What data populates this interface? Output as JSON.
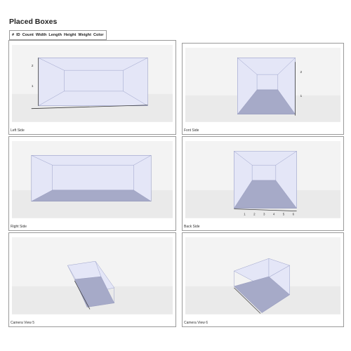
{
  "page": {
    "title": "Placed Boxes"
  },
  "table": {
    "columns": [
      "#",
      "ID",
      "Count",
      "Width",
      "Length",
      "Height",
      "Weight",
      "Color"
    ]
  },
  "views": [
    {
      "caption": "Left Side",
      "axis_labels": [
        "1",
        "2"
      ]
    },
    {
      "caption": "Font Side",
      "axis_labels": [
        "1",
        "2"
      ]
    },
    {
      "caption": "Right Side",
      "axis_labels": []
    },
    {
      "caption": "Back Side",
      "axis_labels": [
        "1",
        "2",
        "3",
        "4",
        "5",
        "6"
      ]
    },
    {
      "caption": "Camera View 5",
      "axis_labels": []
    },
    {
      "caption": "Camera View 6",
      "axis_labels": []
    }
  ],
  "colors": {
    "box_edge": "#9aa0c8",
    "box_face": "#e4e6f7",
    "box_floor": "#a6aac8",
    "axis": "#3a3a3a",
    "background": "#f3f3f3"
  }
}
